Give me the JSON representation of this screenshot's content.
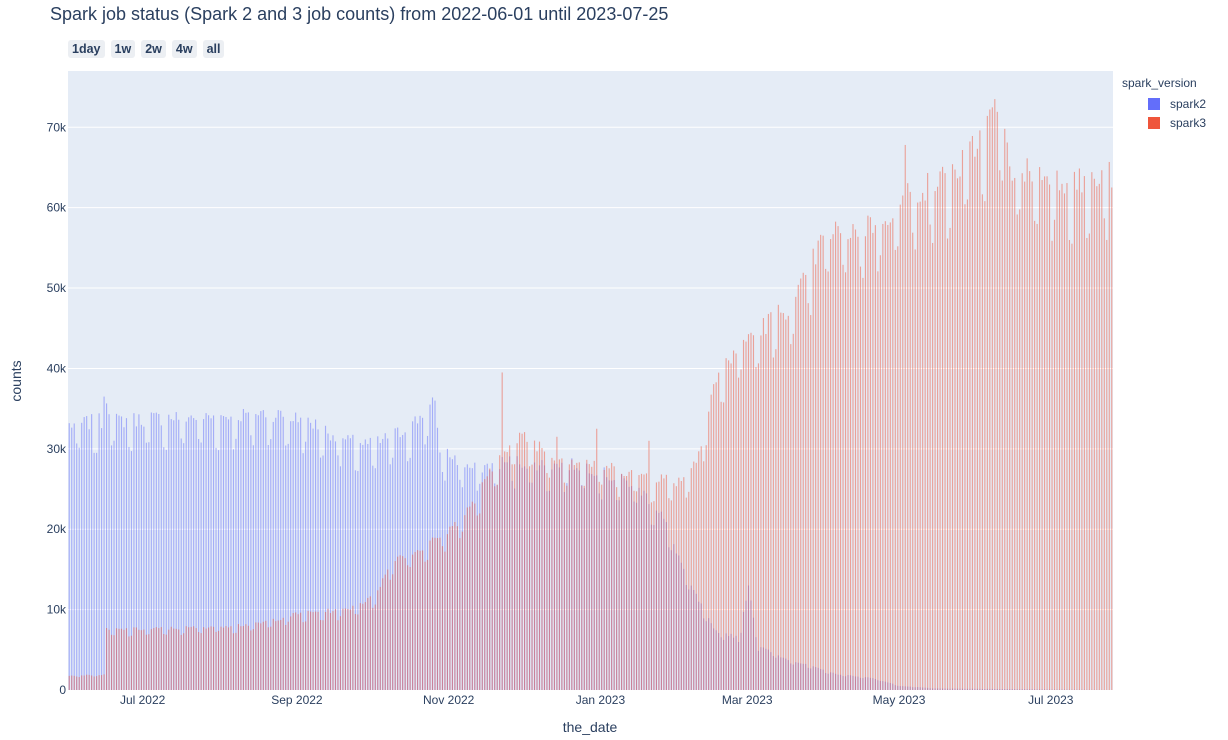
{
  "title": "Spark job status (Spark 2 and 3 job counts) from 2022-06-01 until 2023-07-25",
  "range_selector": [
    {
      "label": "1day",
      "active": false
    },
    {
      "label": "1w",
      "active": false
    },
    {
      "label": "2w",
      "active": false
    },
    {
      "label": "4w",
      "active": false
    },
    {
      "label": "all",
      "active": true
    }
  ],
  "legend": {
    "title": "spark_version",
    "items": [
      {
        "label": "spark2",
        "color": "#636efa"
      },
      {
        "label": "spark3",
        "color": "#ef553b"
      }
    ]
  },
  "chart_data": {
    "type": "bar",
    "barmode": "overlay",
    "xlabel": "the_date",
    "ylabel": "counts",
    "x_start": "2022-06-01",
    "x_end": "2023-07-25",
    "ylim": [
      0,
      77000
    ],
    "x_ticks": [
      {
        "date": "2022-07-01",
        "label": "Jul 2022"
      },
      {
        "date": "2022-09-01",
        "label": "Sep 2022"
      },
      {
        "date": "2022-11-01",
        "label": "Nov 2022"
      },
      {
        "date": "2023-01-01",
        "label": "Jan 2023"
      },
      {
        "date": "2023-03-01",
        "label": "Mar 2023"
      },
      {
        "date": "2023-05-01",
        "label": "May 2023"
      },
      {
        "date": "2023-07-01",
        "label": "Jul 2023"
      }
    ],
    "y_ticks": [
      {
        "value": 0,
        "label": "0"
      },
      {
        "value": 10000,
        "label": "10k"
      },
      {
        "value": 20000,
        "label": "20k"
      },
      {
        "value": 30000,
        "label": "30k"
      },
      {
        "value": 40000,
        "label": "40k"
      },
      {
        "value": 50000,
        "label": "50k"
      },
      {
        "value": 60000,
        "label": "60k"
      },
      {
        "value": 70000,
        "label": "70k"
      }
    ],
    "grid": true,
    "legend_position": "top-right",
    "series": [
      {
        "name": "spark2",
        "color": "#636efa",
        "points": [
          [
            "2022-06-01",
            33000
          ],
          [
            "2022-06-15",
            33500
          ],
          [
            "2022-06-15",
            36500
          ],
          [
            "2022-06-20",
            33500
          ],
          [
            "2022-07-15",
            34000
          ],
          [
            "2022-08-01",
            34000
          ],
          [
            "2022-08-20",
            34500
          ],
          [
            "2022-09-05",
            33500
          ],
          [
            "2022-09-20",
            31000
          ],
          [
            "2022-10-01",
            30500
          ],
          [
            "2022-10-15",
            32500
          ],
          [
            "2022-10-25",
            35500
          ],
          [
            "2022-10-28",
            30000
          ],
          [
            "2022-11-10",
            27500
          ],
          [
            "2022-11-25",
            28500
          ],
          [
            "2022-12-10",
            28000
          ],
          [
            "2022-12-25",
            28000
          ],
          [
            "2023-01-05",
            26500
          ],
          [
            "2023-01-15",
            25500
          ],
          [
            "2023-01-25",
            22000
          ],
          [
            "2023-02-05",
            13500
          ],
          [
            "2023-02-15",
            7500
          ],
          [
            "2023-02-25",
            6500
          ],
          [
            "2023-03-01",
            13000
          ],
          [
            "2023-03-05",
            5500
          ],
          [
            "2023-03-15",
            4000
          ],
          [
            "2023-03-31",
            2500
          ],
          [
            "2023-04-05",
            2000
          ],
          [
            "2023-04-20",
            1500
          ],
          [
            "2023-05-01",
            500
          ],
          [
            "2023-05-15",
            200
          ],
          [
            "2023-07-25",
            0
          ]
        ]
      },
      {
        "name": "spark3",
        "color": "#ef553b",
        "points": [
          [
            "2022-06-01",
            1800
          ],
          [
            "2022-06-15",
            1900
          ],
          [
            "2022-06-16",
            7500
          ],
          [
            "2022-07-15",
            7700
          ],
          [
            "2022-08-15",
            8200
          ],
          [
            "2022-09-01",
            9500
          ],
          [
            "2022-09-20",
            10000
          ],
          [
            "2022-10-01",
            11500
          ],
          [
            "2022-10-10",
            16500
          ],
          [
            "2022-10-20",
            17500
          ],
          [
            "2022-11-01",
            20000
          ],
          [
            "2022-11-10",
            23000
          ],
          [
            "2022-11-20",
            28500
          ],
          [
            "2022-11-21",
            30000
          ],
          [
            "2022-12-01",
            31500
          ],
          [
            "2022-12-15",
            29000
          ],
          [
            "2022-12-31",
            28000
          ],
          [
            "2023-01-15",
            27000
          ],
          [
            "2023-02-01",
            26000
          ],
          [
            "2023-02-08",
            28500
          ],
          [
            "2023-02-15",
            38000
          ],
          [
            "2023-02-25",
            43000
          ],
          [
            "2023-03-10",
            46000
          ],
          [
            "2023-03-20",
            48500
          ],
          [
            "2023-04-01",
            57000
          ],
          [
            "2023-04-15",
            57500
          ],
          [
            "2023-04-25",
            59000
          ],
          [
            "2023-05-05",
            62000
          ],
          [
            "2023-05-15",
            63000
          ],
          [
            "2023-05-25",
            65000
          ],
          [
            "2023-06-05",
            70000
          ],
          [
            "2023-06-08",
            73000
          ],
          [
            "2023-06-15",
            65000
          ],
          [
            "2023-07-01",
            64000
          ],
          [
            "2023-07-15",
            63000
          ],
          [
            "2023-07-25",
            64000
          ]
        ]
      }
    ],
    "spikes": [
      {
        "series": "spark3",
        "date": "2022-11-22",
        "value": 39500
      },
      {
        "series": "spark3",
        "date": "2022-12-14",
        "value": 31500
      },
      {
        "series": "spark3",
        "date": "2022-12-30",
        "value": 32500
      },
      {
        "series": "spark3",
        "date": "2023-01-20",
        "value": 31000
      },
      {
        "series": "spark3",
        "date": "2023-05-03",
        "value": 67800
      },
      {
        "series": "spark3",
        "date": "2023-06-08",
        "value": 73500
      },
      {
        "series": "spark2",
        "date": "2022-06-15",
        "value": 36500
      },
      {
        "series": "spark2",
        "date": "2022-10-26",
        "value": 36000
      },
      {
        "series": "spark2",
        "date": "2023-03-01",
        "value": 13000
      }
    ]
  }
}
